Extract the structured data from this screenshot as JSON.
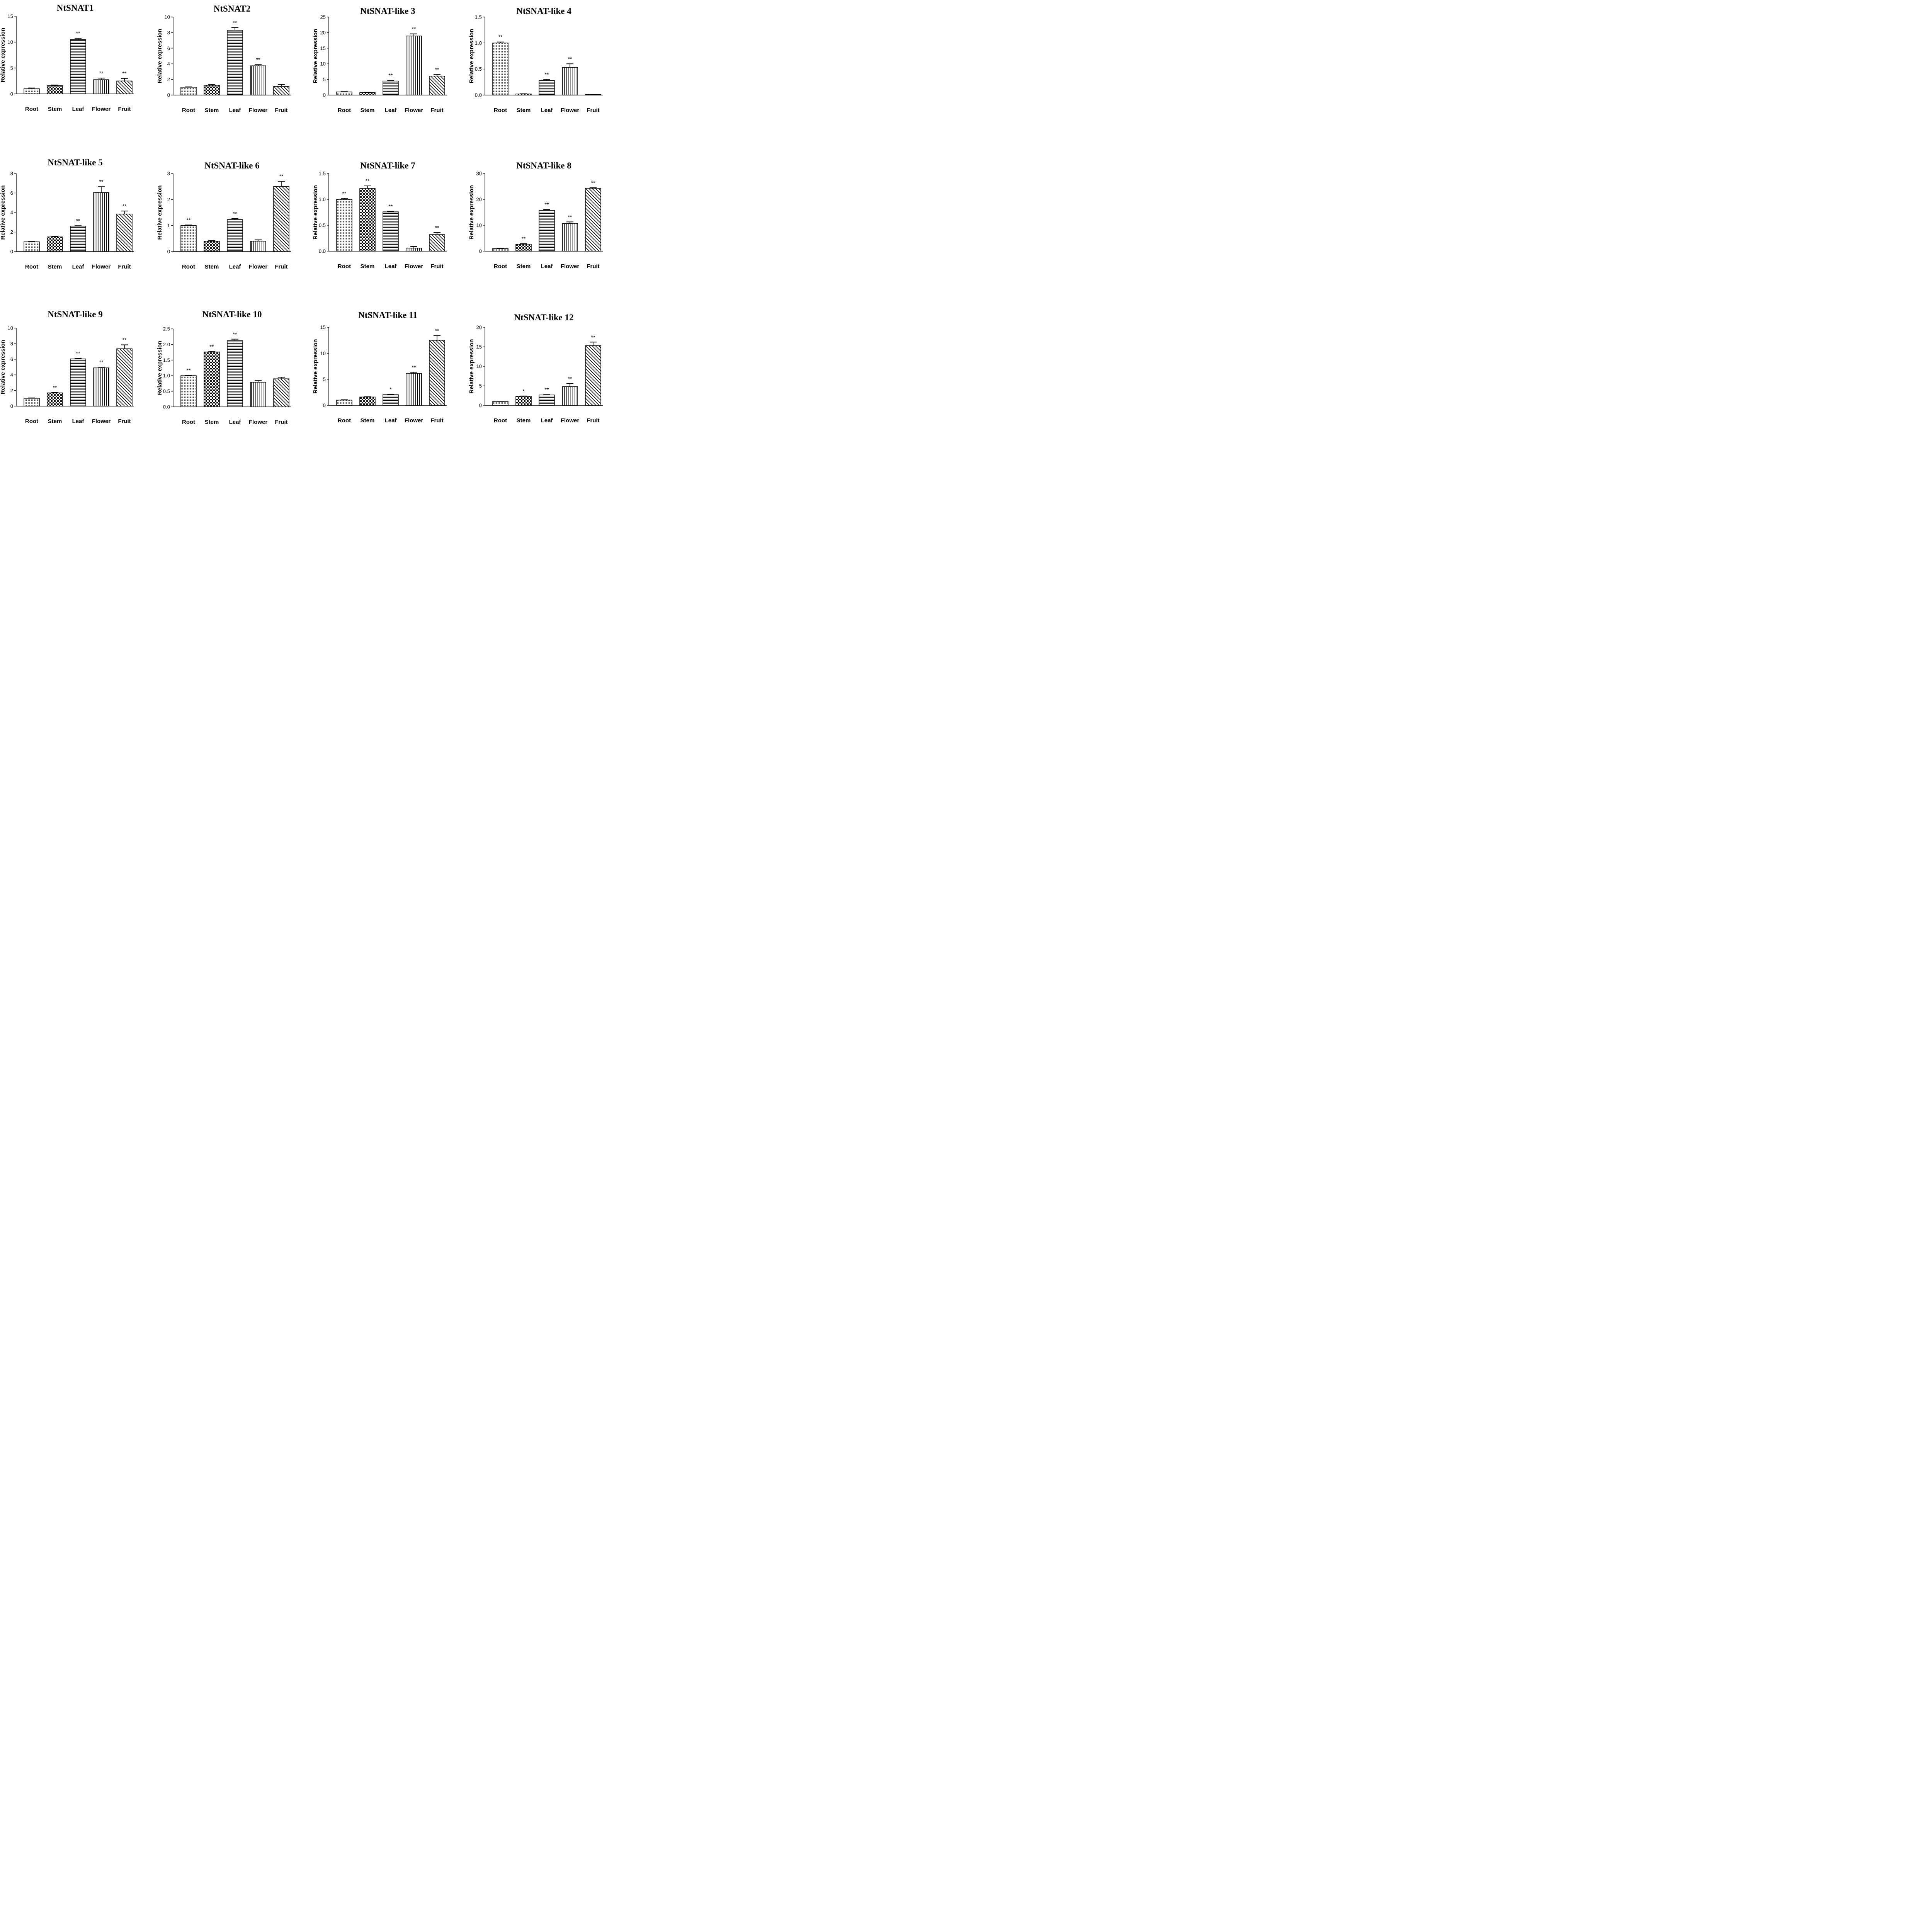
{
  "chart_data": [
    {
      "type": "bar",
      "title": "NtSNAT1",
      "ylabel": "Relative expression",
      "ylim": [
        0,
        15
      ],
      "yticks": [
        0,
        5,
        10,
        15
      ],
      "categories": [
        "Root",
        "Stem",
        "Leaf",
        "Flower",
        "Fruit"
      ],
      "values": [
        1.0,
        1.6,
        10.5,
        2.75,
        2.5
      ],
      "errors": [
        0.15,
        0.12,
        0.25,
        0.3,
        0.5
      ],
      "significance": [
        "",
        "",
        "**",
        "**",
        "**"
      ],
      "fills": [
        "dots",
        "checker",
        "hlines",
        "vlines",
        "diag"
      ]
    },
    {
      "type": "bar",
      "title": "NtSNAT2",
      "ylabel": "Relative expression",
      "ylim": [
        0,
        10
      ],
      "yticks": [
        0,
        2,
        4,
        6,
        8,
        10
      ],
      "categories": [
        "Root",
        "Stem",
        "Leaf",
        "Flower",
        "Fruit"
      ],
      "values": [
        1.0,
        1.25,
        8.3,
        3.75,
        1.1
      ],
      "errors": [
        0.05,
        0.1,
        0.35,
        0.15,
        0.25
      ],
      "significance": [
        "",
        "",
        "**",
        "**",
        ""
      ],
      "fills": [
        "dots",
        "checker",
        "hlines",
        "vlines",
        "diag"
      ]
    },
    {
      "type": "bar",
      "title": "NtSNAT-like 3",
      "ylabel": "Relative expression",
      "ylim": [
        0,
        25
      ],
      "yticks": [
        0,
        5,
        10,
        15,
        20,
        25
      ],
      "categories": [
        "Root",
        "Stem",
        "Leaf",
        "Flower",
        "Fruit"
      ],
      "values": [
        1.0,
        0.8,
        4.5,
        18.9,
        6.1
      ],
      "errors": [
        0.1,
        0.1,
        0.2,
        0.7,
        0.5
      ],
      "significance": [
        "",
        "",
        "**",
        "**",
        "**"
      ],
      "fills": [
        "dots",
        "checker",
        "hlines",
        "vlines",
        "diag"
      ]
    },
    {
      "type": "bar",
      "title": "NtSNAT-like 4",
      "ylabel": "Relative expression",
      "ylim": [
        0,
        1.5
      ],
      "yticks": [
        0.0,
        0.5,
        1.0,
        1.5
      ],
      "tickDecimals": 1,
      "categories": [
        "Root",
        "Stem",
        "Leaf",
        "Flower",
        "Fruit"
      ],
      "values": [
        1.0,
        0.02,
        0.28,
        0.53,
        0.01
      ],
      "errors": [
        0.02,
        0.005,
        0.02,
        0.07,
        0.005
      ],
      "significance": [
        "**",
        "",
        "**",
        "**",
        ""
      ],
      "fills": [
        "dots",
        "checker",
        "hlines",
        "vlines",
        "diag"
      ]
    },
    {
      "type": "bar",
      "title": "NtSNAT-like 5",
      "ylabel": "Relative expression",
      "ylim": [
        0,
        8
      ],
      "yticks": [
        0,
        2,
        4,
        6,
        8
      ],
      "categories": [
        "Root",
        "Stem",
        "Leaf",
        "Flower",
        "Fruit"
      ],
      "values": [
        1.0,
        1.5,
        2.6,
        6.05,
        3.85
      ],
      "errors": [
        0.03,
        0.05,
        0.05,
        0.6,
        0.3
      ],
      "significance": [
        "",
        "",
        "**",
        "**",
        "**"
      ],
      "fills": [
        "dots",
        "checker",
        "hlines",
        "vlines",
        "diag"
      ]
    },
    {
      "type": "bar",
      "title": "NtSNAT-like 6",
      "ylabel": "Relative expression",
      "ylim": [
        0,
        3
      ],
      "yticks": [
        0,
        1,
        2,
        3
      ],
      "categories": [
        "Root",
        "Stem",
        "Leaf",
        "Flower",
        "Fruit"
      ],
      "values": [
        1.0,
        0.4,
        1.23,
        0.4,
        2.5
      ],
      "errors": [
        0.02,
        0.02,
        0.04,
        0.05,
        0.2
      ],
      "significance": [
        "**",
        "",
        "**",
        "",
        "**"
      ],
      "fills": [
        "dots",
        "checker",
        "hlines",
        "vlines",
        "diag"
      ]
    },
    {
      "type": "bar",
      "title": "NtSNAT-like 7",
      "ylabel": "Relative expression",
      "ylim": [
        0,
        1.5
      ],
      "yticks": [
        0.0,
        0.5,
        1.0,
        1.5
      ],
      "tickDecimals": 1,
      "categories": [
        "Root",
        "Stem",
        "Leaf",
        "Flower",
        "Fruit"
      ],
      "values": [
        1.0,
        1.21,
        0.76,
        0.06,
        0.32
      ],
      "errors": [
        0.02,
        0.05,
        0.01,
        0.03,
        0.04
      ],
      "significance": [
        "**",
        "**",
        "**",
        "",
        "**"
      ],
      "fills": [
        "dots",
        "checker",
        "hlines",
        "vlines",
        "diag"
      ]
    },
    {
      "type": "bar",
      "title": "NtSNAT-like 8",
      "ylabel": "Relative expression",
      "ylim": [
        0,
        30
      ],
      "yticks": [
        0,
        10,
        20,
        30
      ],
      "categories": [
        "Root",
        "Stem",
        "Leaf",
        "Flower",
        "Fruit"
      ],
      "values": [
        1.0,
        2.7,
        15.8,
        10.7,
        24.3
      ],
      "errors": [
        0.05,
        0.2,
        0.3,
        0.6,
        0.2
      ],
      "significance": [
        "",
        "**",
        "**",
        "**",
        "**"
      ],
      "fills": [
        "dots",
        "checker",
        "hlines",
        "vlines",
        "diag"
      ]
    },
    {
      "type": "bar",
      "title": "NtSNAT-like 9",
      "ylabel": "Relative expression",
      "ylim": [
        0,
        10
      ],
      "yticks": [
        0,
        2,
        4,
        6,
        8,
        10
      ],
      "categories": [
        "Root",
        "Stem",
        "Leaf",
        "Flower",
        "Fruit"
      ],
      "values": [
        1.0,
        1.7,
        6.05,
        4.9,
        7.35
      ],
      "errors": [
        0.02,
        0.05,
        0.08,
        0.1,
        0.5
      ],
      "significance": [
        "",
        "**",
        "**",
        "**",
        "**"
      ],
      "fills": [
        "dots",
        "checker",
        "hlines",
        "vlines",
        "diag"
      ]
    },
    {
      "type": "bar",
      "title": "NtSNAT-like 10",
      "ylabel": "Relative expression",
      "ylim": [
        0,
        2.5
      ],
      "yticks": [
        0.0,
        0.5,
        1.0,
        1.5,
        2.0,
        2.5
      ],
      "tickDecimals": 1,
      "categories": [
        "Root",
        "Stem",
        "Leaf",
        "Flower",
        "Fruit"
      ],
      "values": [
        1.0,
        1.76,
        2.12,
        0.79,
        0.9
      ],
      "errors": [
        0.01,
        0.01,
        0.05,
        0.06,
        0.05
      ],
      "significance": [
        "**",
        "**",
        "**",
        "",
        ""
      ],
      "fills": [
        "dots",
        "checker",
        "hlines",
        "vlines",
        "diag"
      ]
    },
    {
      "type": "bar",
      "title": "NtSNAT-like 11",
      "ylabel": "Relative expression",
      "ylim": [
        0,
        15
      ],
      "yticks": [
        0,
        5,
        10,
        15
      ],
      "categories": [
        "Root",
        "Stem",
        "Leaf",
        "Flower",
        "Fruit"
      ],
      "values": [
        1.0,
        1.6,
        2.05,
        6.15,
        12.5
      ],
      "errors": [
        0.03,
        0.05,
        0.05,
        0.2,
        0.9
      ],
      "significance": [
        "",
        "",
        "*",
        "**",
        "**"
      ],
      "fills": [
        "dots",
        "checker",
        "hlines",
        "vlines",
        "diag"
      ]
    },
    {
      "type": "bar",
      "title": "NtSNAT-like 12",
      "ylabel": "Relative expression",
      "ylim": [
        0,
        20
      ],
      "yticks": [
        0,
        5,
        10,
        15,
        20
      ],
      "categories": [
        "Root",
        "Stem",
        "Leaf",
        "Flower",
        "Fruit"
      ],
      "values": [
        1.0,
        2.3,
        2.65,
        4.8,
        15.3
      ],
      "errors": [
        0.03,
        0.1,
        0.1,
        0.8,
        0.9
      ],
      "significance": [
        "",
        "*",
        "**",
        "**",
        "**"
      ],
      "fills": [
        "dots",
        "checker",
        "hlines",
        "vlines",
        "diag"
      ]
    }
  ]
}
